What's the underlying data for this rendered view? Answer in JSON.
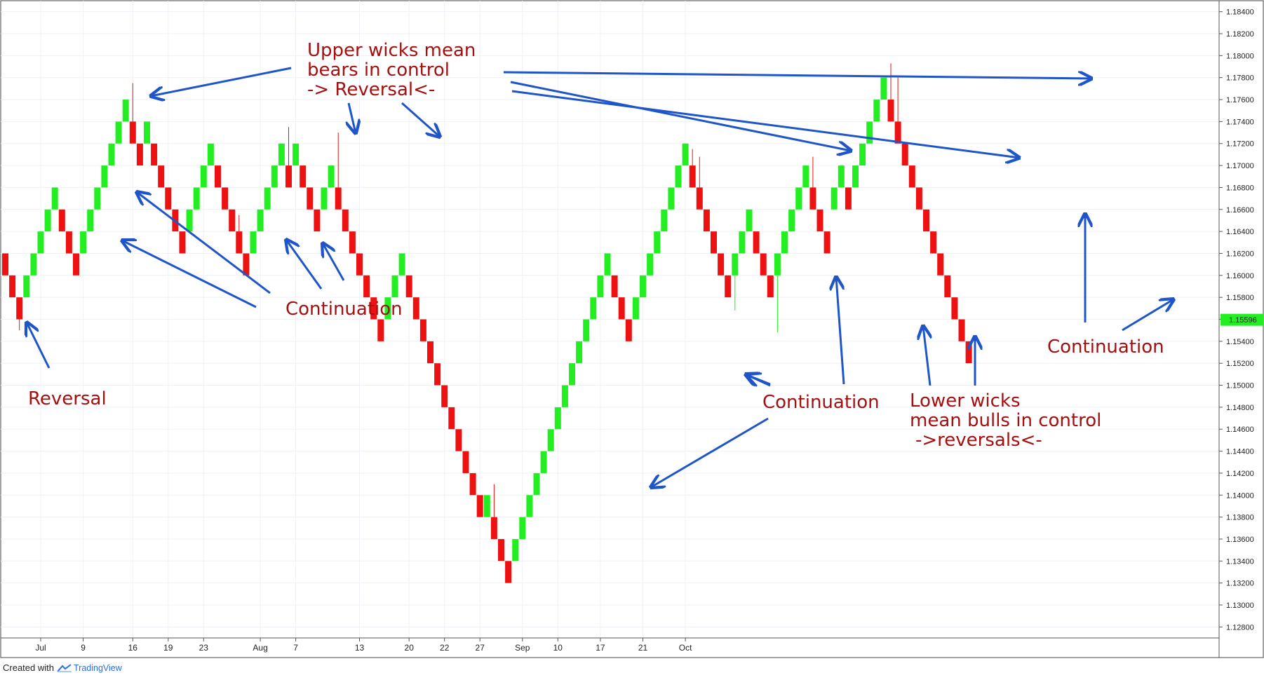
{
  "chart_data": {
    "type": "renko",
    "title": "",
    "box_size": 0.002,
    "ylim": [
      1.127,
      1.185
    ],
    "y_ticks": [
      "1.18400",
      "1.18200",
      "1.18000",
      "1.17800",
      "1.17600",
      "1.17400",
      "1.17200",
      "1.17000",
      "1.16800",
      "1.16600",
      "1.16400",
      "1.16200",
      "1.16000",
      "1.15800",
      "1.15600",
      "1.15400",
      "1.15200",
      "1.15000",
      "1.14800",
      "1.14600",
      "1.14400",
      "1.14200",
      "1.14000",
      "1.13800",
      "1.13600",
      "1.13400",
      "1.13200",
      "1.13000",
      "1.12800"
    ],
    "x_ticks": [
      {
        "label": "Jul",
        "brick": 5
      },
      {
        "label": "9",
        "brick": 11
      },
      {
        "label": "16",
        "brick": 18
      },
      {
        "label": "19",
        "brick": 23
      },
      {
        "label": "23",
        "brick": 28
      },
      {
        "label": "Aug",
        "brick": 36
      },
      {
        "label": "7",
        "brick": 41
      },
      {
        "label": "13",
        "brick": 50
      },
      {
        "label": "20",
        "brick": 57
      },
      {
        "label": "22",
        "brick": 62
      },
      {
        "label": "27",
        "brick": 67
      },
      {
        "label": "Sep",
        "brick": 73
      },
      {
        "label": "10",
        "brick": 78
      },
      {
        "label": "17",
        "brick": 84
      },
      {
        "label": "21",
        "brick": 90
      },
      {
        "label": "Oct",
        "brick": 96
      }
    ],
    "bricks": [
      {
        "dir": "down",
        "top": 1.162,
        "bottom": 1.16
      },
      {
        "dir": "down",
        "top": 1.16,
        "bottom": 1.158
      },
      {
        "dir": "down",
        "top": 1.158,
        "bottom": 1.156,
        "lower_wick": 1.155
      },
      {
        "dir": "up",
        "top": 1.16,
        "bottom": 1.158
      },
      {
        "dir": "up",
        "top": 1.162,
        "bottom": 1.16
      },
      {
        "dir": "up",
        "top": 1.164,
        "bottom": 1.162
      },
      {
        "dir": "up",
        "top": 1.166,
        "bottom": 1.164
      },
      {
        "dir": "up",
        "top": 1.168,
        "bottom": 1.166
      },
      {
        "dir": "down",
        "top": 1.166,
        "bottom": 1.164
      },
      {
        "dir": "down",
        "top": 1.164,
        "bottom": 1.162
      },
      {
        "dir": "down",
        "top": 1.162,
        "bottom": 1.16
      },
      {
        "dir": "up",
        "top": 1.164,
        "bottom": 1.162
      },
      {
        "dir": "up",
        "top": 1.166,
        "bottom": 1.164
      },
      {
        "dir": "up",
        "top": 1.168,
        "bottom": 1.166
      },
      {
        "dir": "up",
        "top": 1.17,
        "bottom": 1.168
      },
      {
        "dir": "up",
        "top": 1.172,
        "bottom": 1.17
      },
      {
        "dir": "up",
        "top": 1.174,
        "bottom": 1.172
      },
      {
        "dir": "up",
        "top": 1.176,
        "bottom": 1.174
      },
      {
        "dir": "down",
        "top": 1.174,
        "bottom": 1.172,
        "upper_wick": 1.1775
      },
      {
        "dir": "down",
        "top": 1.172,
        "bottom": 1.17
      },
      {
        "dir": "up",
        "top": 1.174,
        "bottom": 1.172
      },
      {
        "dir": "down",
        "top": 1.172,
        "bottom": 1.17
      },
      {
        "dir": "down",
        "top": 1.17,
        "bottom": 1.168
      },
      {
        "dir": "down",
        "top": 1.168,
        "bottom": 1.166
      },
      {
        "dir": "down",
        "top": 1.166,
        "bottom": 1.164
      },
      {
        "dir": "down",
        "top": 1.164,
        "bottom": 1.162
      },
      {
        "dir": "up",
        "top": 1.166,
        "bottom": 1.164
      },
      {
        "dir": "up",
        "top": 1.168,
        "bottom": 1.166
      },
      {
        "dir": "up",
        "top": 1.17,
        "bottom": 1.168
      },
      {
        "dir": "up",
        "top": 1.172,
        "bottom": 1.17
      },
      {
        "dir": "down",
        "top": 1.17,
        "bottom": 1.168
      },
      {
        "dir": "down",
        "top": 1.168,
        "bottom": 1.166
      },
      {
        "dir": "down",
        "top": 1.166,
        "bottom": 1.164
      },
      {
        "dir": "down",
        "top": 1.164,
        "bottom": 1.162,
        "upper_wick": 1.1655
      },
      {
        "dir": "down",
        "top": 1.162,
        "bottom": 1.16
      },
      {
        "dir": "up",
        "top": 1.164,
        "bottom": 1.162
      },
      {
        "dir": "up",
        "top": 1.166,
        "bottom": 1.164
      },
      {
        "dir": "up",
        "top": 1.168,
        "bottom": 1.166
      },
      {
        "dir": "up",
        "top": 1.17,
        "bottom": 1.168
      },
      {
        "dir": "up",
        "top": 1.172,
        "bottom": 1.17
      },
      {
        "dir": "down",
        "top": 1.17,
        "bottom": 1.168,
        "upper_wick": 1.1735
      },
      {
        "dir": "up",
        "top": 1.172,
        "bottom": 1.17
      },
      {
        "dir": "down",
        "top": 1.17,
        "bottom": 1.168
      },
      {
        "dir": "down",
        "top": 1.168,
        "bottom": 1.166
      },
      {
        "dir": "down",
        "top": 1.166,
        "bottom": 1.164
      },
      {
        "dir": "up",
        "top": 1.168,
        "bottom": 1.166
      },
      {
        "dir": "up",
        "top": 1.17,
        "bottom": 1.168
      },
      {
        "dir": "down",
        "top": 1.168,
        "bottom": 1.166,
        "upper_wick": 1.173
      },
      {
        "dir": "down",
        "top": 1.166,
        "bottom": 1.164
      },
      {
        "dir": "down",
        "top": 1.164,
        "bottom": 1.162
      },
      {
        "dir": "down",
        "top": 1.162,
        "bottom": 1.16
      },
      {
        "dir": "down",
        "top": 1.16,
        "bottom": 1.158
      },
      {
        "dir": "down",
        "top": 1.158,
        "bottom": 1.156
      },
      {
        "dir": "down",
        "top": 1.156,
        "bottom": 1.154
      },
      {
        "dir": "up",
        "top": 1.158,
        "bottom": 1.156
      },
      {
        "dir": "up",
        "top": 1.16,
        "bottom": 1.158
      },
      {
        "dir": "up",
        "top": 1.162,
        "bottom": 1.16
      },
      {
        "dir": "down",
        "top": 1.16,
        "bottom": 1.158
      },
      {
        "dir": "down",
        "top": 1.158,
        "bottom": 1.156
      },
      {
        "dir": "down",
        "top": 1.156,
        "bottom": 1.154
      },
      {
        "dir": "down",
        "top": 1.154,
        "bottom": 1.152
      },
      {
        "dir": "down",
        "top": 1.152,
        "bottom": 1.15
      },
      {
        "dir": "down",
        "top": 1.15,
        "bottom": 1.148
      },
      {
        "dir": "down",
        "top": 1.148,
        "bottom": 1.146
      },
      {
        "dir": "down",
        "top": 1.146,
        "bottom": 1.144
      },
      {
        "dir": "down",
        "top": 1.144,
        "bottom": 1.142
      },
      {
        "dir": "down",
        "top": 1.142,
        "bottom": 1.14
      },
      {
        "dir": "down",
        "top": 1.14,
        "bottom": 1.138
      },
      {
        "dir": "up",
        "top": 1.14,
        "bottom": 1.138
      },
      {
        "dir": "down",
        "top": 1.138,
        "bottom": 1.136,
        "upper_wick": 1.141
      },
      {
        "dir": "down",
        "top": 1.136,
        "bottom": 1.134
      },
      {
        "dir": "down",
        "top": 1.134,
        "bottom": 1.132
      },
      {
        "dir": "up",
        "top": 1.136,
        "bottom": 1.134
      },
      {
        "dir": "up",
        "top": 1.138,
        "bottom": 1.136
      },
      {
        "dir": "up",
        "top": 1.14,
        "bottom": 1.138
      },
      {
        "dir": "up",
        "top": 1.142,
        "bottom": 1.14
      },
      {
        "dir": "up",
        "top": 1.144,
        "bottom": 1.142
      },
      {
        "dir": "up",
        "top": 1.146,
        "bottom": 1.144
      },
      {
        "dir": "up",
        "top": 1.148,
        "bottom": 1.146
      },
      {
        "dir": "up",
        "top": 1.15,
        "bottom": 1.148
      },
      {
        "dir": "up",
        "top": 1.152,
        "bottom": 1.15
      },
      {
        "dir": "up",
        "top": 1.154,
        "bottom": 1.152
      },
      {
        "dir": "up",
        "top": 1.156,
        "bottom": 1.154
      },
      {
        "dir": "up",
        "top": 1.158,
        "bottom": 1.156
      },
      {
        "dir": "up",
        "top": 1.16,
        "bottom": 1.158
      },
      {
        "dir": "up",
        "top": 1.162,
        "bottom": 1.16
      },
      {
        "dir": "down",
        "top": 1.16,
        "bottom": 1.158
      },
      {
        "dir": "down",
        "top": 1.158,
        "bottom": 1.156
      },
      {
        "dir": "down",
        "top": 1.156,
        "bottom": 1.154
      },
      {
        "dir": "up",
        "top": 1.158,
        "bottom": 1.156
      },
      {
        "dir": "up",
        "top": 1.16,
        "bottom": 1.158
      },
      {
        "dir": "up",
        "top": 1.162,
        "bottom": 1.16
      },
      {
        "dir": "up",
        "top": 1.164,
        "bottom": 1.162
      },
      {
        "dir": "up",
        "top": 1.166,
        "bottom": 1.164
      },
      {
        "dir": "up",
        "top": 1.168,
        "bottom": 1.166
      },
      {
        "dir": "up",
        "top": 1.17,
        "bottom": 1.168
      },
      {
        "dir": "up",
        "top": 1.172,
        "bottom": 1.17
      },
      {
        "dir": "down",
        "top": 1.17,
        "bottom": 1.168,
        "upper_wick": 1.1715
      },
      {
        "dir": "down",
        "top": 1.168,
        "bottom": 1.166,
        "upper_wick": 1.1708
      },
      {
        "dir": "down",
        "top": 1.166,
        "bottom": 1.164
      },
      {
        "dir": "down",
        "top": 1.164,
        "bottom": 1.162
      },
      {
        "dir": "down",
        "top": 1.162,
        "bottom": 1.16
      },
      {
        "dir": "down",
        "top": 1.16,
        "bottom": 1.158
      },
      {
        "dir": "up",
        "top": 1.162,
        "bottom": 1.16,
        "lower_wick": 1.1568
      },
      {
        "dir": "up",
        "top": 1.164,
        "bottom": 1.162
      },
      {
        "dir": "up",
        "top": 1.166,
        "bottom": 1.164
      },
      {
        "dir": "down",
        "top": 1.164,
        "bottom": 1.162
      },
      {
        "dir": "down",
        "top": 1.162,
        "bottom": 1.16
      },
      {
        "dir": "down",
        "top": 1.16,
        "bottom": 1.158
      },
      {
        "dir": "up",
        "top": 1.162,
        "bottom": 1.16,
        "lower_wick": 1.1548
      },
      {
        "dir": "up",
        "top": 1.164,
        "bottom": 1.162
      },
      {
        "dir": "up",
        "top": 1.166,
        "bottom": 1.164
      },
      {
        "dir": "up",
        "top": 1.168,
        "bottom": 1.166
      },
      {
        "dir": "up",
        "top": 1.17,
        "bottom": 1.168
      },
      {
        "dir": "down",
        "top": 1.168,
        "bottom": 1.166,
        "upper_wick": 1.1708
      },
      {
        "dir": "down",
        "top": 1.166,
        "bottom": 1.164
      },
      {
        "dir": "down",
        "top": 1.164,
        "bottom": 1.162
      },
      {
        "dir": "up",
        "top": 1.168,
        "bottom": 1.166
      },
      {
        "dir": "up",
        "top": 1.17,
        "bottom": 1.168
      },
      {
        "dir": "down",
        "top": 1.168,
        "bottom": 1.166
      },
      {
        "dir": "up",
        "top": 1.17,
        "bottom": 1.168
      },
      {
        "dir": "up",
        "top": 1.172,
        "bottom": 1.17
      },
      {
        "dir": "up",
        "top": 1.174,
        "bottom": 1.172
      },
      {
        "dir": "up",
        "top": 1.176,
        "bottom": 1.174
      },
      {
        "dir": "up",
        "top": 1.178,
        "bottom": 1.176
      },
      {
        "dir": "down",
        "top": 1.176,
        "bottom": 1.174,
        "upper_wick": 1.1793
      },
      {
        "dir": "down",
        "top": 1.174,
        "bottom": 1.172,
        "upper_wick": 1.178
      },
      {
        "dir": "down",
        "top": 1.172,
        "bottom": 1.17
      },
      {
        "dir": "down",
        "top": 1.17,
        "bottom": 1.168
      },
      {
        "dir": "down",
        "top": 1.168,
        "bottom": 1.166
      },
      {
        "dir": "down",
        "top": 1.166,
        "bottom": 1.164
      },
      {
        "dir": "down",
        "top": 1.164,
        "bottom": 1.162
      },
      {
        "dir": "down",
        "top": 1.162,
        "bottom": 1.16,
        "upper_wick": 1.1615
      },
      {
        "dir": "down",
        "top": 1.16,
        "bottom": 1.158
      },
      {
        "dir": "down",
        "top": 1.158,
        "bottom": 1.156
      },
      {
        "dir": "down",
        "top": 1.156,
        "bottom": 1.154
      },
      {
        "dir": "down",
        "top": 1.154,
        "bottom": 1.152
      }
    ],
    "last_price": "1.15596",
    "colors": {
      "up": "#22ee22",
      "down": "#ee1111",
      "annotation_text": "#a50f0f",
      "arrow": "#1e55c8",
      "price_tag": "#22ee22",
      "grid": "#eef1f6"
    },
    "grid": true,
    "annotations": [
      {
        "text": "Reversal"
      },
      {
        "text": "Upper wicks mean"
      },
      {
        "text": "bears in control"
      },
      {
        "text": "-> Reversal<-"
      },
      {
        "text": "Continuation"
      },
      {
        "text": "Continuation"
      },
      {
        "text": "Lower wicks"
      },
      {
        "text": "mean bulls in control"
      },
      {
        "text": "->reversals<-"
      },
      {
        "text": "Continuation"
      }
    ]
  },
  "footer": {
    "created_with": "Created with",
    "brand": "TradingView"
  }
}
